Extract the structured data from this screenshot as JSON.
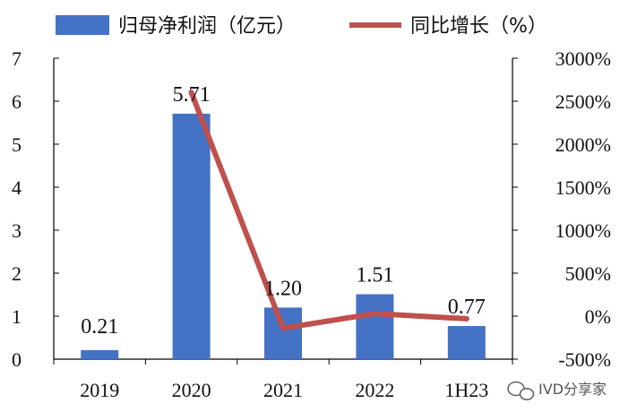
{
  "chart_data": {
    "type": "bar",
    "categories": [
      "2019",
      "2020",
      "2021",
      "2022",
      "1H23"
    ],
    "series": [
      {
        "name": "归母净利润（亿元）",
        "type": "bar",
        "axis": "left",
        "color": "#4472C4",
        "values": [
          0.21,
          5.71,
          1.2,
          1.51,
          0.77
        ],
        "labels": [
          "0.21",
          "5.71",
          "1.20",
          "1.51",
          "0.77"
        ]
      },
      {
        "name": "同比增长（%）",
        "type": "line",
        "axis": "right",
        "color": "#C0504D",
        "values": [
          null,
          2600,
          -140,
          30,
          -30
        ]
      }
    ],
    "y_left": {
      "min": 0,
      "max": 7,
      "ticks": [
        "0",
        "1",
        "2",
        "3",
        "4",
        "5",
        "6",
        "7"
      ]
    },
    "y_right": {
      "min": -500,
      "max": 3000,
      "ticks": [
        "-500%",
        "0%",
        "500%",
        "1000%",
        "1500%",
        "2000%",
        "2500%",
        "3000%"
      ]
    },
    "legend_position": "top",
    "grid": false
  },
  "watermark": {
    "text": "IVD分享家",
    "icon": "wechat-icon"
  }
}
